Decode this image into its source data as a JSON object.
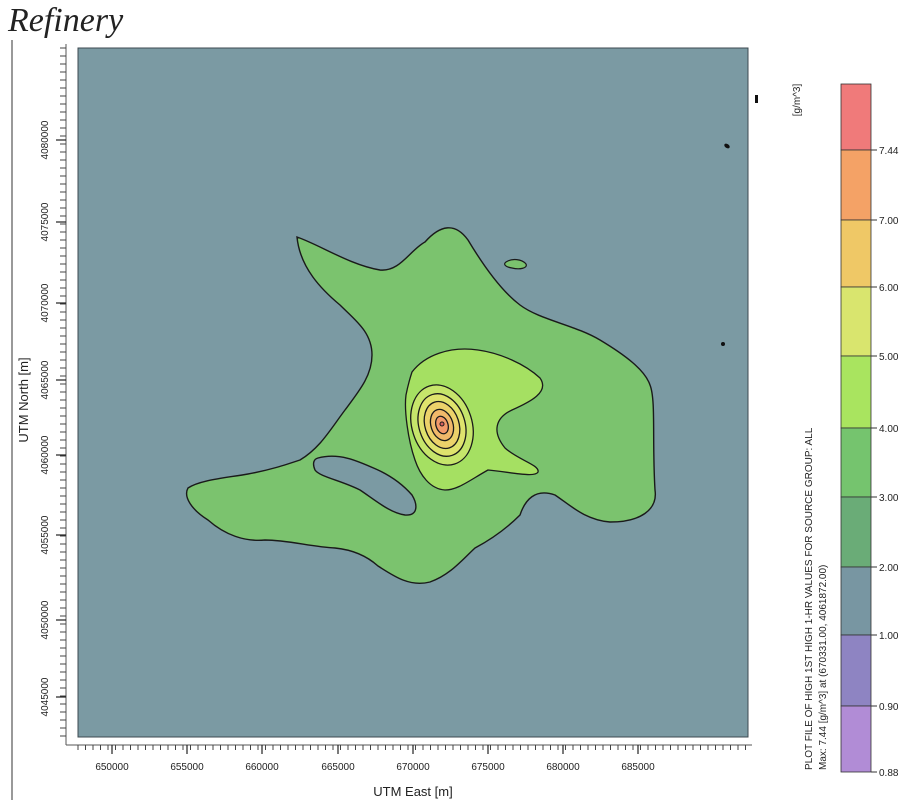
{
  "title": "Refinery",
  "chart_data": {
    "type": "heatmap",
    "xlabel": "UTM East [m]",
    "ylabel": "UTM North [m]",
    "x_ticks": [
      "650000",
      "655000",
      "660000",
      "665000",
      "670000",
      "675000",
      "680000",
      "685000"
    ],
    "y_ticks": [
      "4045000",
      "4050000",
      "4055000",
      "4060000",
      "4065000",
      "4070000",
      "4075000",
      "4080000"
    ],
    "xlim": [
      647500,
      690000
    ],
    "ylim": [
      4043000,
      4085000
    ],
    "unit": "[g/m^3]",
    "legend_levels": [
      "7.44",
      "7.00",
      "6.00",
      "5.00",
      "4.00",
      "3.00",
      "2.00",
      "1.00",
      "0.90",
      "0.88"
    ],
    "level_colors": [
      "#f07a7a",
      "#f4a266",
      "#efc866",
      "#d9e56e",
      "#a9e45f",
      "#75c46e",
      "#6aac77",
      "#7896a2",
      "#8e84c2",
      "#b18cd6"
    ],
    "background_color": "#7b9aa3",
    "max_text": "Max: 7.44 [g/m^3] at (670331.00, 4061872.00)",
    "plot_file_text": "PLOT FILE OF HIGH 1ST HIGH 1-HR VALUES FOR SOURCE GROUP: ALL",
    "max_value": 7.44,
    "max_location": [
      670331.0,
      4061872.0
    ]
  }
}
